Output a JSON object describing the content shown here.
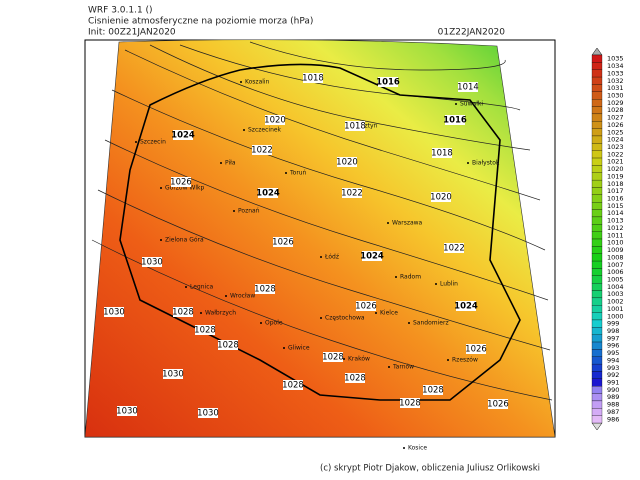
{
  "header": {
    "model": "WRF 3.0.1.1 ()",
    "title": "Cisnienie atmosferyczne na poziomie morza (hPa)",
    "init": "Init: 00Z21JAN2020",
    "valid": "01Z22JAN2020"
  },
  "footer": "(c) skrypt Piotr Djakow, obliczenia Juliusz Orlikowski",
  "colorbar": {
    "labels": [
      1035,
      1034,
      1033,
      1032,
      1031,
      1030,
      1029,
      1028,
      1027,
      1026,
      1025,
      1024,
      1023,
      1022,
      1021,
      1020,
      1019,
      1018,
      1017,
      1016,
      1015,
      1014,
      1013,
      1012,
      1011,
      1010,
      1009,
      1008,
      1007,
      1006,
      1005,
      1004,
      1003,
      1002,
      1001,
      1000,
      999,
      998,
      997,
      996,
      995,
      994,
      993,
      992,
      991,
      990,
      989,
      988,
      987,
      986
    ]
  },
  "isobar_labels": [
    {
      "value": 1018,
      "bold": false
    },
    {
      "value": 1016,
      "bold": true
    },
    {
      "value": 1014,
      "bold": false
    },
    {
      "value": 1016,
      "bold": true
    },
    {
      "value": 1020,
      "bold": false
    },
    {
      "value": 1018,
      "bold": false
    },
    {
      "value": 1024,
      "bold": true
    },
    {
      "value": 1022,
      "bold": false
    },
    {
      "value": 1020,
      "bold": false
    },
    {
      "value": 1018,
      "bold": false
    },
    {
      "value": 1026,
      "bold": false
    },
    {
      "value": 1024,
      "bold": true
    },
    {
      "value": 1022,
      "bold": false
    },
    {
      "value": 1020,
      "bold": false
    },
    {
      "value": 1026,
      "bold": false
    },
    {
      "value": 1024,
      "bold": true
    },
    {
      "value": 1022,
      "bold": false
    },
    {
      "value": 1030,
      "bold": false
    },
    {
      "value": 1028,
      "bold": false
    },
    {
      "value": 1026,
      "bold": false
    },
    {
      "value": 1024,
      "bold": true
    },
    {
      "value": 1030,
      "bold": false
    },
    {
      "value": 1028,
      "bold": false
    },
    {
      "value": 1028,
      "bold": false
    },
    {
      "value": 1028,
      "bold": false
    },
    {
      "value": 1028,
      "bold": false
    },
    {
      "value": 1026,
      "bold": false
    },
    {
      "value": 1030,
      "bold": false
    },
    {
      "value": 1028,
      "bold": false
    },
    {
      "value": 1028,
      "bold": false
    },
    {
      "value": 1028,
      "bold": false
    },
    {
      "value": 1030,
      "bold": false
    },
    {
      "value": 1030,
      "bold": false
    },
    {
      "value": 1028,
      "bold": false
    },
    {
      "value": 1026,
      "bold": false
    }
  ],
  "cities": [
    "Koszalin",
    "Szczecinek",
    "Szczecin",
    "Piła",
    "Gorzów Wlkp",
    "Poznań",
    "Zielona Góra",
    "Legnica",
    "Wrocław",
    "Wałbrzych",
    "Opole",
    "Gliwice",
    "Częstochowa",
    "Kielce",
    "Kraków",
    "Tarnów",
    "Rzeszów",
    "Sandomierz",
    "Radom",
    "Lublin",
    "Łódź",
    "Warszawa",
    "Toruń",
    "Olsztyn",
    "Suwałki",
    "Białystok",
    "Kosice"
  ]
}
